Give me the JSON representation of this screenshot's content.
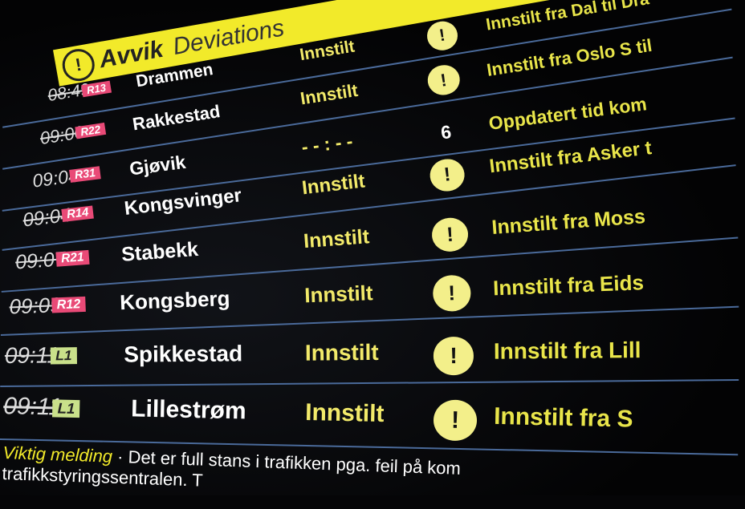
{
  "header": {
    "title_no": "Avvik",
    "title_en": "Deviations",
    "icon": "exclamation-icon"
  },
  "rows": [
    {
      "time": "08:49",
      "cancelled_time": true,
      "line": "R13",
      "dest": "Drammen",
      "status": "Innstilt",
      "icon": "!",
      "msg": "Innstilt fra Dal til Dra"
    },
    {
      "time": "09:00",
      "cancelled_time": true,
      "line": "R22",
      "dest": "Rakkestad",
      "status": "Innstilt",
      "icon": "!",
      "msg": "Innstilt fra Oslo S til"
    },
    {
      "time": "09:04",
      "cancelled_time": false,
      "line": "R31",
      "dest": "Gjøvik",
      "status": "- - : - -",
      "icon": "6",
      "msg": "Oppdatert tid kom"
    },
    {
      "time": "09:04",
      "cancelled_time": true,
      "line": "R14",
      "dest": "Kongsvinger",
      "status": "Innstilt",
      "icon": "!",
      "msg": "Innstilt fra Asker t"
    },
    {
      "time": "09:07",
      "cancelled_time": true,
      "line": "R21",
      "dest": "Stabekk",
      "status": "Innstilt",
      "icon": "!",
      "msg": "Innstilt fra Moss"
    },
    {
      "time": "09:09",
      "cancelled_time": true,
      "line": "R12",
      "dest": "Kongsberg",
      "status": "Innstilt",
      "icon": "!",
      "msg": "Innstilt fra Eids"
    },
    {
      "time": "09:11",
      "cancelled_time": true,
      "line": "L1",
      "dest": "Spikkestad",
      "status": "Innstilt",
      "icon": "!",
      "msg": "Innstilt fra Lill"
    },
    {
      "time": "09:11",
      "cancelled_time": true,
      "line": "L1",
      "dest": "Lillestrøm",
      "status": "Innstilt",
      "icon": "!",
      "msg": "Innstilt fra S"
    }
  ],
  "footer": {
    "label": "Viktig melding",
    "text": " · Det er full stans i trafikken pga. feil på kom",
    "text2": "trafikkstyringssentralen. T"
  },
  "colors": {
    "header": "#f2ea2a",
    "badge_r": "#e94a77",
    "badge_l": "#c9e08a",
    "status": "#f2ea6a"
  }
}
